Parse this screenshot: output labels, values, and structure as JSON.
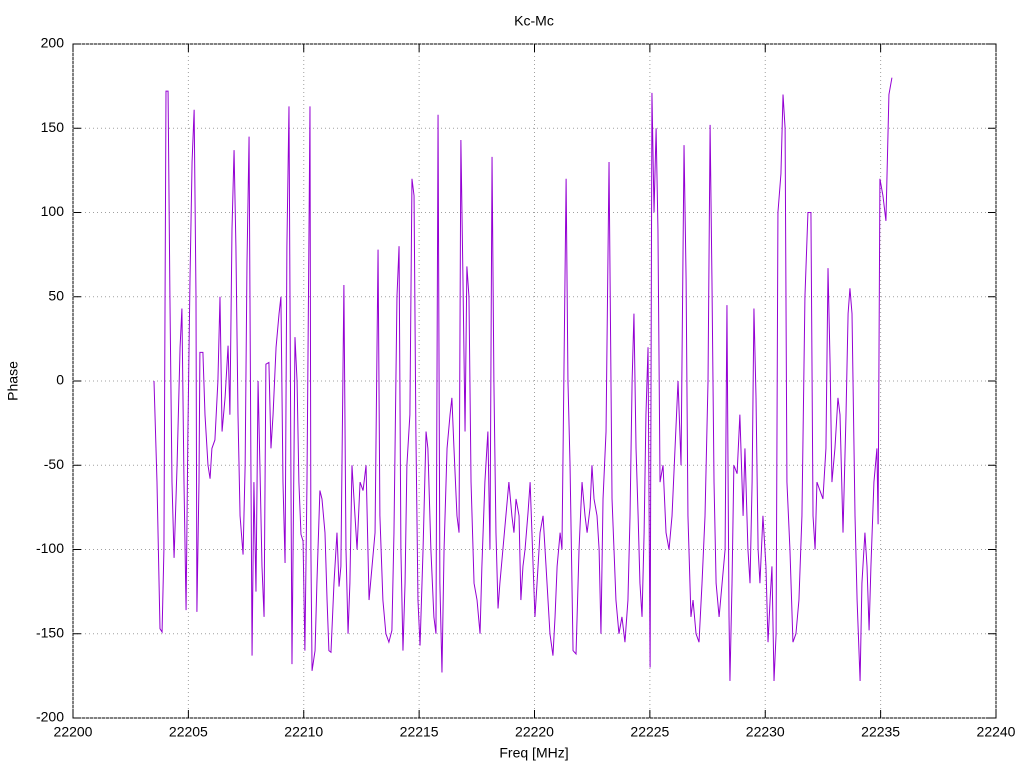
{
  "chart_data": {
    "type": "line",
    "title": "Kc-Mc",
    "x_label": "Freq [MHz]",
    "y_label": "Phase",
    "color": "#9400d3",
    "grid": true,
    "xlim": [
      22200,
      22240
    ],
    "xticks": [
      22200,
      22205,
      22210,
      22215,
      22220,
      22225,
      22230,
      22235,
      22240
    ],
    "ylim": [
      -200,
      200
    ],
    "yticks": [
      -200,
      -150,
      -100,
      -50,
      0,
      50,
      100,
      150,
      200
    ],
    "x": [
      22203.51,
      22203.64,
      22203.77,
      22203.86,
      22203.94,
      22204.03,
      22204.12,
      22204.2,
      22204.29,
      22204.38,
      22204.51,
      22204.64,
      22204.72,
      22204.81,
      22204.9,
      22204.98,
      22205.07,
      22205.16,
      22205.25,
      22205.33,
      22205.37,
      22205.46,
      22205.5,
      22205.63,
      22205.72,
      22205.85,
      22205.94,
      22206.02,
      22206.15,
      22206.28,
      22206.37,
      22206.46,
      22206.59,
      22206.72,
      22206.8,
      22206.89,
      22206.98,
      22207.06,
      22207.15,
      22207.24,
      22207.37,
      22207.46,
      22207.54,
      22207.63,
      22207.71,
      22207.76,
      22207.84,
      22207.93,
      22208.02,
      22208.1,
      22208.19,
      22208.28,
      22208.36,
      22208.49,
      22208.58,
      22208.67,
      22208.8,
      22208.93,
      22209.01,
      22209.1,
      22209.19,
      22209.27,
      22209.36,
      22209.45,
      22209.49,
      22209.58,
      22209.62,
      22209.71,
      22209.79,
      22209.88,
      22209.97,
      22210.05,
      22210.14,
      22210.27,
      22210.31,
      22210.36,
      22210.49,
      22210.57,
      22210.7,
      22210.79,
      22210.92,
      22211.01,
      22211.09,
      22211.18,
      22211.31,
      22211.44,
      22211.53,
      22211.61,
      22211.74,
      22211.83,
      22211.92,
      22212.0,
      22212.09,
      22212.22,
      22212.31,
      22212.44,
      22212.57,
      22212.7,
      22212.83,
      22212.96,
      22213.09,
      22213.22,
      22213.3,
      22213.43,
      22213.56,
      22213.69,
      22213.82,
      22213.91,
      22214.04,
      22214.13,
      22214.21,
      22214.3,
      22214.39,
      22214.47,
      22214.6,
      22214.69,
      22214.78,
      22214.86,
      22214.95,
      22215.04,
      22215.17,
      22215.3,
      22215.38,
      22215.51,
      22215.64,
      22215.73,
      22215.82,
      22215.9,
      22215.99,
      22216.08,
      22216.21,
      22216.34,
      22216.42,
      22216.51,
      22216.64,
      22216.73,
      22216.81,
      22216.9,
      22216.99,
      22217.07,
      22217.16,
      22217.25,
      22217.38,
      22217.51,
      22217.64,
      22217.72,
      22217.85,
      22217.98,
      22218.07,
      22218.16,
      22218.24,
      22218.33,
      22218.42,
      22218.5,
      22218.63,
      22218.76,
      22218.89,
      22219.02,
      22219.11,
      22219.2,
      22219.33,
      22219.41,
      22219.5,
      22219.59,
      22219.72,
      22219.81,
      22219.94,
      22220.02,
      22220.11,
      22220.24,
      22220.37,
      22220.5,
      22220.67,
      22220.8,
      22220.89,
      22220.98,
      22221.11,
      22221.19,
      22221.37,
      22221.45,
      22221.54,
      22221.67,
      22221.8,
      22221.93,
      22222.06,
      22222.19,
      22222.28,
      22222.41,
      22222.49,
      22222.58,
      22222.71,
      22222.8,
      22222.88,
      22222.97,
      22223.1,
      22223.23,
      22223.36,
      22223.53,
      22223.66,
      22223.79,
      22223.92,
      22224.05,
      22224.14,
      22224.23,
      22224.31,
      22224.4,
      22224.49,
      22224.57,
      22224.66,
      22224.75,
      22224.83,
      22224.92,
      22225.01,
      22225.09,
      22225.18,
      22225.27,
      22225.35,
      22225.44,
      22225.57,
      22225.7,
      22225.83,
      22225.96,
      22226.09,
      22226.22,
      22226.35,
      22226.48,
      22226.57,
      22226.65,
      22226.78,
      22226.87,
      22227.0,
      22227.13,
      22227.26,
      22227.39,
      22227.52,
      22227.61,
      22227.69,
      22227.78,
      22227.87,
      22228.0,
      22228.13,
      22228.26,
      22228.34,
      22228.43,
      22228.47,
      22228.56,
      22228.64,
      22228.78,
      22228.9,
      22229.04,
      22229.12,
      22229.25,
      22229.34,
      22229.43,
      22229.51,
      22229.6,
      22229.69,
      22229.77,
      22229.9,
      22230.03,
      22230.12,
      22230.21,
      22230.29,
      22230.38,
      22230.47,
      22230.55,
      22230.68,
      22230.77,
      22230.86,
      22230.94,
      22231.07,
      22231.2,
      22231.33,
      22231.46,
      22231.59,
      22231.72,
      22231.85,
      22231.98,
      22232.07,
      22232.16,
      22232.24,
      22232.37,
      22232.5,
      22232.63,
      22232.72,
      22232.81,
      22232.89,
      22233.02,
      22233.15,
      22233.24,
      22233.37,
      22233.5,
      22233.59,
      22233.67,
      22233.76,
      22233.89,
      22233.98,
      22234.11,
      22234.19,
      22234.32,
      22234.41,
      22234.5,
      22234.58,
      22234.71,
      22234.84,
      22234.89,
      22234.97,
      22235.1,
      22235.23,
      22235.36,
      22235.49
    ],
    "values": [
      0,
      -60,
      -147,
      -149,
      -100,
      172,
      172,
      50,
      -60,
      -105,
      -50,
      20,
      43,
      -60,
      -136,
      -30,
      60,
      130,
      161,
      50,
      -137,
      -60,
      17,
      17,
      -20,
      -50,
      -58,
      -40,
      -35,
      0,
      50,
      -30,
      -10,
      21,
      -20,
      90,
      137,
      80,
      -20,
      -80,
      -103,
      -50,
      70,
      145,
      -50,
      -163,
      -60,
      -125,
      0,
      -50,
      -110,
      -140,
      10,
      11,
      -40,
      -20,
      20,
      40,
      50,
      -60,
      -108,
      80,
      163,
      -70,
      -168,
      -40,
      26,
      0,
      -60,
      -91,
      -95,
      -160,
      -60,
      163,
      -100,
      -172,
      -160,
      -120,
      -65,
      -70,
      -90,
      -130,
      -160,
      -161,
      -120,
      -90,
      -122,
      -110,
      57,
      -100,
      -150,
      -120,
      -50,
      -80,
      -100,
      -60,
      -65,
      -50,
      -130,
      -110,
      -90,
      78,
      -80,
      -130,
      -150,
      -155,
      -148,
      -90,
      50,
      80,
      -100,
      -160,
      -120,
      -50,
      -20,
      120,
      110,
      -30,
      -130,
      -157,
      -100,
      -30,
      -40,
      -100,
      -140,
      -150,
      158,
      -120,
      -173,
      -100,
      -40,
      -20,
      -10,
      -40,
      -80,
      -90,
      143,
      60,
      -30,
      68,
      50,
      -60,
      -120,
      -130,
      -150,
      -110,
      -60,
      -30,
      -100,
      133,
      0,
      -90,
      -135,
      -120,
      -100,
      -80,
      -60,
      -80,
      -90,
      -70,
      -80,
      -130,
      -110,
      -100,
      -78,
      -60,
      -110,
      -140,
      -120,
      -90,
      -80,
      -110,
      -150,
      -163,
      -140,
      -110,
      -90,
      -100,
      120,
      0,
      -50,
      -160,
      -162,
      -100,
      -60,
      -80,
      -90,
      -75,
      -50,
      -70,
      -80,
      -100,
      -150,
      -70,
      -30,
      130,
      -70,
      -130,
      -150,
      -140,
      -155,
      -130,
      -80,
      0,
      40,
      -40,
      -80,
      -120,
      -140,
      -90,
      -20,
      20,
      -170,
      171,
      100,
      150,
      90,
      -60,
      -50,
      -90,
      -100,
      -80,
      -40,
      0,
      -50,
      140,
      60,
      -80,
      -140,
      -130,
      -150,
      -155,
      -120,
      -80,
      0,
      152,
      60,
      -60,
      -120,
      -140,
      -120,
      -100,
      45,
      -140,
      -178,
      -120,
      -50,
      -55,
      -20,
      -80,
      -40,
      -100,
      -120,
      -60,
      43,
      -10,
      -100,
      -120,
      -80,
      -110,
      -155,
      -130,
      -110,
      -178,
      -150,
      100,
      123,
      170,
      150,
      -60,
      -100,
      -155,
      -150,
      -130,
      -80,
      50,
      100,
      100,
      -80,
      -100,
      -60,
      -65,
      -70,
      -40,
      67,
      10,
      -60,
      -40,
      -10,
      -20,
      -90,
      -20,
      40,
      55,
      40,
      -80,
      -130,
      -178,
      -120,
      -90,
      -110,
      -148,
      -110,
      -60,
      -40,
      -85,
      120,
      110,
      95,
      170,
      180
    ]
  }
}
